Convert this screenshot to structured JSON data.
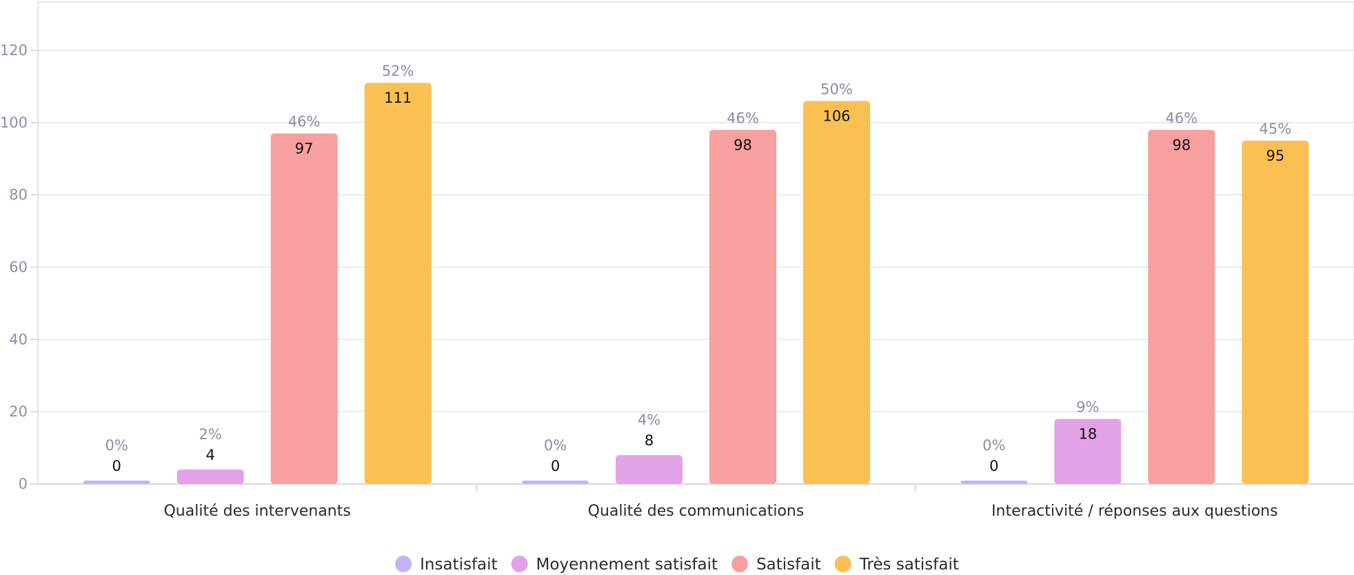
{
  "chart_data": {
    "type": "bar",
    "categories": [
      "Qualité des intervenants",
      "Qualité des communications",
      "Interactivité / réponses aux questions"
    ],
    "series": [
      {
        "name": "Insatisfait",
        "color": "#c4b3f7",
        "values": [
          0,
          0,
          0
        ],
        "percents": [
          "0%",
          "0%",
          "0%"
        ]
      },
      {
        "name": "Moyennement satisfait",
        "color": "#e2a3e6",
        "values": [
          4,
          8,
          18
        ],
        "percents": [
          "2%",
          "4%",
          "9%"
        ]
      },
      {
        "name": "Satisfait",
        "color": "#f7a09f",
        "values": [
          97,
          98,
          98
        ],
        "percents": [
          "46%",
          "46%",
          "46%"
        ]
      },
      {
        "name": "Très satisfait",
        "color": "#fcc052",
        "values": [
          111,
          106,
          95
        ],
        "percents": [
          "52%",
          "50%",
          "45%"
        ]
      }
    ],
    "ylim": [
      0,
      120
    ],
    "yticks": [
      0,
      20,
      40,
      60,
      80,
      100,
      120
    ],
    "grid": true,
    "legend": "bottom"
  }
}
